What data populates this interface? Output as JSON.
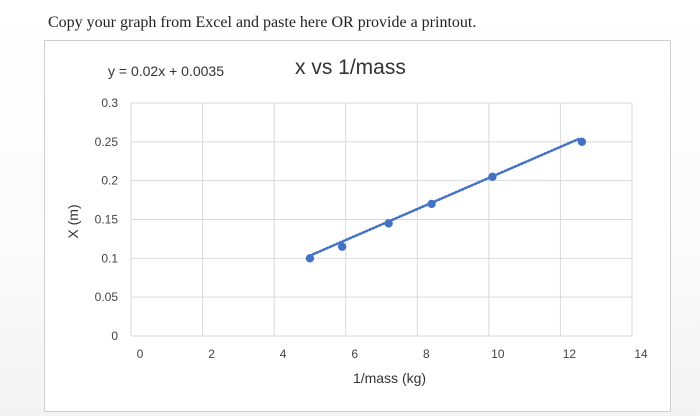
{
  "page": {
    "instruction": "Copy your graph from Excel and paste here OR provide a printout."
  },
  "colors": {
    "marker": "#4472c4",
    "gridline": "#d9d9d9",
    "text": "#333333"
  },
  "chart_data": {
    "type": "scatter",
    "title": "x vs 1/mass",
    "xlabel": "1/mass (kg)",
    "ylabel": "X (m)",
    "xlim": [
      0,
      14
    ],
    "ylim": [
      0,
      0.3
    ],
    "x_ticks": [
      "0",
      "2",
      "4",
      "6",
      "8",
      "10",
      "12",
      "14"
    ],
    "y_ticks": [
      "0",
      "0.05",
      "0.1",
      "0.15",
      "0.2",
      "0.25",
      "0.3"
    ],
    "grid": true,
    "legend": "none",
    "trendline": {
      "type": "linear",
      "equation": "y = 0.02x + 0.0035",
      "style": "dotted",
      "x_range": [
        5,
        12.5
      ]
    },
    "series": [
      {
        "x": [
          5.0,
          5.9,
          7.2,
          8.4,
          10.1,
          12.6
        ],
        "y": [
          0.1,
          0.115,
          0.145,
          0.17,
          0.205,
          0.25
        ]
      }
    ]
  }
}
